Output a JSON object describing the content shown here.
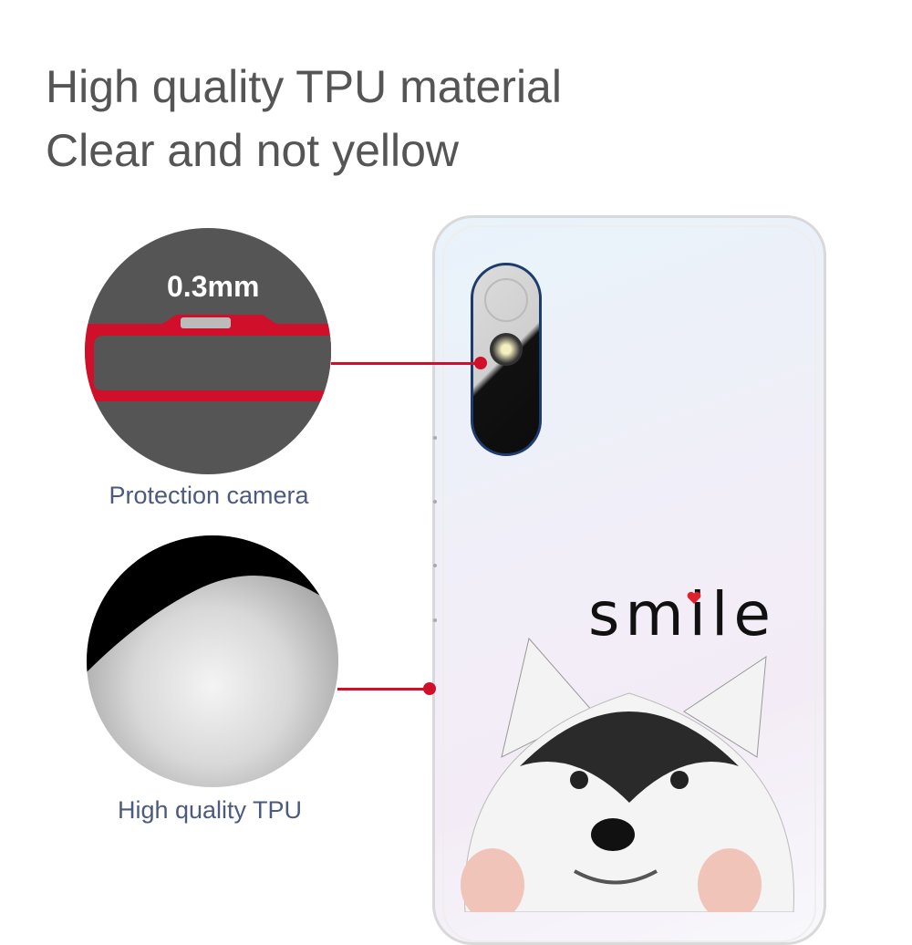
{
  "headline": {
    "line1": "High quality TPU material",
    "line2": "Clear and not yellow"
  },
  "callouts": [
    {
      "measurement": "0.3mm",
      "label": "Protection camera"
    },
    {
      "label": "High quality TPU"
    }
  ],
  "case_print": {
    "text": "smile",
    "heart_color": "#e0202a"
  },
  "colors": {
    "accent_line": "#d0102a",
    "label_text": "#4d5a80",
    "headline_text": "#555555"
  }
}
